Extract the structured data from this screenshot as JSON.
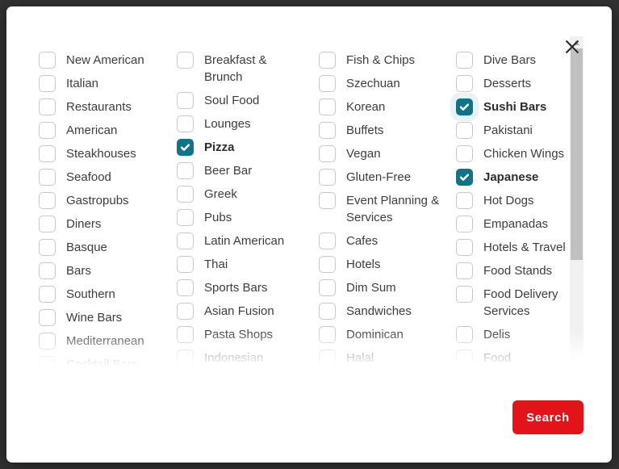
{
  "modal": {
    "close_button": {
      "icon": "close-x"
    },
    "categories": {
      "columns": [
        {
          "items": [
            {
              "label": "New American",
              "checked": false
            },
            {
              "label": "Italian",
              "checked": false
            },
            {
              "label": "Restaurants",
              "checked": false
            },
            {
              "label": "American",
              "checked": false
            },
            {
              "label": "Steakhouses",
              "checked": false
            },
            {
              "label": "Seafood",
              "checked": false
            },
            {
              "label": "Gastropubs",
              "checked": false
            },
            {
              "label": "Diners",
              "checked": false
            },
            {
              "label": "Basque",
              "checked": false
            },
            {
              "label": "Bars",
              "checked": false
            },
            {
              "label": "Southern",
              "checked": false
            },
            {
              "label": "Wine Bars",
              "checked": false
            },
            {
              "label": "Mediterranean",
              "checked": false
            },
            {
              "label": "Cocktail Bars",
              "checked": false
            }
          ]
        },
        {
          "items": [
            {
              "label": "Breakfast & Brunch",
              "checked": false
            },
            {
              "label": "Soul Food",
              "checked": false
            },
            {
              "label": "Lounges",
              "checked": false
            },
            {
              "label": "Pizza",
              "checked": true
            },
            {
              "label": "Beer Bar",
              "checked": false
            },
            {
              "label": "Greek",
              "checked": false
            },
            {
              "label": "Pubs",
              "checked": false
            },
            {
              "label": "Latin American",
              "checked": false
            },
            {
              "label": "Thai",
              "checked": false
            },
            {
              "label": "Sports Bars",
              "checked": false
            },
            {
              "label": "Asian Fusion",
              "checked": false
            },
            {
              "label": "Pasta Shops",
              "checked": false
            },
            {
              "label": "Indonesian",
              "checked": false
            }
          ]
        },
        {
          "items": [
            {
              "label": "Fish & Chips",
              "checked": false
            },
            {
              "label": "Szechuan",
              "checked": false
            },
            {
              "label": "Korean",
              "checked": false
            },
            {
              "label": "Buffets",
              "checked": false
            },
            {
              "label": "Vegan",
              "checked": false
            },
            {
              "label": "Gluten-Free",
              "checked": false
            },
            {
              "label": "Event Planning & Services",
              "checked": false
            },
            {
              "label": "Cafes",
              "checked": false
            },
            {
              "label": "Hotels",
              "checked": false
            },
            {
              "label": "Dim Sum",
              "checked": false
            },
            {
              "label": "Sandwiches",
              "checked": false
            },
            {
              "label": "Dominican",
              "checked": false
            },
            {
              "label": "Halal",
              "checked": false
            }
          ]
        },
        {
          "items": [
            {
              "label": "Dive Bars",
              "checked": false
            },
            {
              "label": "Desserts",
              "checked": false
            },
            {
              "label": "Sushi Bars",
              "checked": true,
              "focused": true
            },
            {
              "label": "Pakistani",
              "checked": false
            },
            {
              "label": "Chicken Wings",
              "checked": false
            },
            {
              "label": "Japanese",
              "checked": true
            },
            {
              "label": "Hot Dogs",
              "checked": false
            },
            {
              "label": "Empanadas",
              "checked": false
            },
            {
              "label": "Hotels & Travel",
              "checked": false
            },
            {
              "label": "Food Stands",
              "checked": false
            },
            {
              "label": "Food Delivery Services",
              "checked": false
            },
            {
              "label": "Delis",
              "checked": false
            },
            {
              "label": "Food",
              "checked": false
            }
          ]
        }
      ]
    },
    "search_button": {
      "label": "Search"
    }
  },
  "colors": {
    "accent_teal": "#0e7489",
    "button_red": "#e3131a",
    "backdrop": "#323232"
  }
}
